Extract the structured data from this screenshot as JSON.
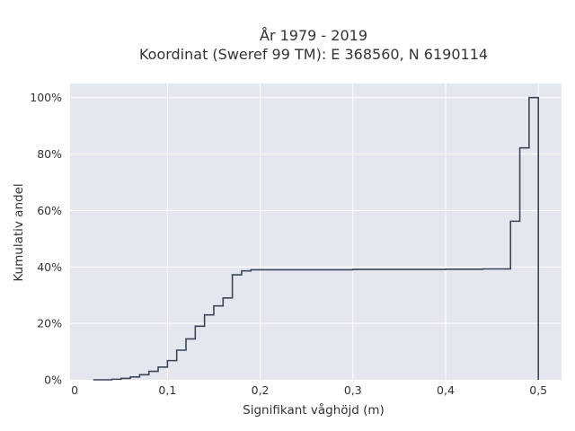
{
  "chart_data": {
    "type": "line",
    "step": true,
    "title_lines": [
      "År 1979 - 2019",
      "Koordinat (Sweref 99 TM): E 368560, N 6190114"
    ],
    "xlabel": "Signifikant våghöjd (m)",
    "ylabel": "Kumulativ andel",
    "xlim": [
      -0.005,
      0.525
    ],
    "ylim": [
      0,
      1.05
    ],
    "grid": true,
    "legend": "none",
    "x_ticks": [
      {
        "value": 0,
        "label": "0"
      },
      {
        "value": 0.1,
        "label": "0,1"
      },
      {
        "value": 0.2,
        "label": "0,2"
      },
      {
        "value": 0.3,
        "label": "0,3"
      },
      {
        "value": 0.4,
        "label": "0,4"
      },
      {
        "value": 0.5,
        "label": "0,5"
      }
    ],
    "y_ticks": [
      {
        "value": 0,
        "label": "0%"
      },
      {
        "value": 0.2,
        "label": "20%"
      },
      {
        "value": 0.4,
        "label": "40%"
      },
      {
        "value": 0.6,
        "label": "60%"
      },
      {
        "value": 0.8,
        "label": "80%"
      },
      {
        "value": 1.0,
        "label": "100%"
      }
    ],
    "colors": {
      "line": "#3b4656",
      "plot_bg": "#e5e7f0",
      "grid": "#ffffff"
    },
    "series": [
      {
        "x": [
          0.02,
          0.04,
          0.05,
          0.06,
          0.07,
          0.08,
          0.09,
          0.1,
          0.11,
          0.12,
          0.13,
          0.14,
          0.15,
          0.16,
          0.17,
          0.18,
          0.19,
          0.2,
          0.3,
          0.4,
          0.44,
          0.47,
          0.48,
          0.49,
          0.5
        ],
        "y": [
          0.0,
          0.002,
          0.005,
          0.01,
          0.018,
          0.03,
          0.045,
          0.068,
          0.105,
          0.145,
          0.19,
          0.23,
          0.262,
          0.29,
          0.372,
          0.386,
          0.39,
          0.39,
          0.391,
          0.392,
          0.393,
          0.562,
          0.822,
          1.0,
          0.0
        ]
      }
    ]
  }
}
